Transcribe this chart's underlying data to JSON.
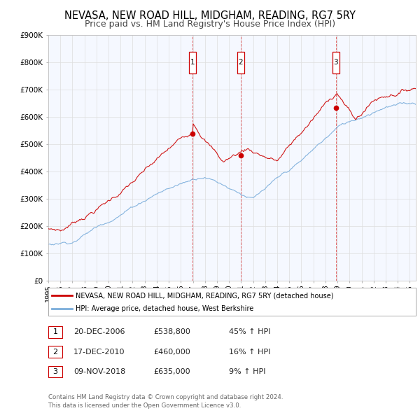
{
  "title": "NEVASA, NEW ROAD HILL, MIDGHAM, READING, RG7 5RY",
  "subtitle": "Price paid vs. HM Land Registry's House Price Index (HPI)",
  "title_fontsize": 10.5,
  "subtitle_fontsize": 9,
  "red_line_color": "#cc0000",
  "blue_line_color": "#7aaddb",
  "plot_bg": "#f5f8ff",
  "grid_color": "#dddddd",
  "ylim": [
    0,
    900000
  ],
  "yticks": [
    0,
    100000,
    200000,
    300000,
    400000,
    500000,
    600000,
    700000,
    800000,
    900000
  ],
  "ytick_labels": [
    "£0",
    "£100K",
    "£200K",
    "£300K",
    "£400K",
    "£500K",
    "£600K",
    "£700K",
    "£800K",
    "£900K"
  ],
  "xlim_start": 1995.0,
  "xlim_end": 2025.5,
  "xticks": [
    1995,
    1996,
    1997,
    1998,
    1999,
    2000,
    2001,
    2002,
    2003,
    2004,
    2005,
    2006,
    2007,
    2008,
    2009,
    2010,
    2011,
    2012,
    2013,
    2014,
    2015,
    2016,
    2017,
    2018,
    2019,
    2020,
    2021,
    2022,
    2023,
    2024,
    2025
  ],
  "sale_events": [
    {
      "num": 1,
      "year": 2006.97,
      "price": 538800,
      "date": "20-DEC-2006",
      "pct": "45% ↑ HPI"
    },
    {
      "num": 2,
      "year": 2010.96,
      "price": 460000,
      "date": "17-DEC-2010",
      "pct": "16% ↑ HPI"
    },
    {
      "num": 3,
      "year": 2018.86,
      "price": 635000,
      "date": "09-NOV-2018",
      "pct": "9% ↑ HPI"
    }
  ],
  "sale_prices": [
    "£538,800",
    "£460,000",
    "£635,000"
  ],
  "legend_red_label": "NEVASA, NEW ROAD HILL, MIDGHAM, READING, RG7 5RY (detached house)",
  "legend_blue_label": "HPI: Average price, detached house, West Berkshire",
  "footer1": "Contains HM Land Registry data © Crown copyright and database right 2024.",
  "footer2": "This data is licensed under the Open Government Licence v3.0."
}
